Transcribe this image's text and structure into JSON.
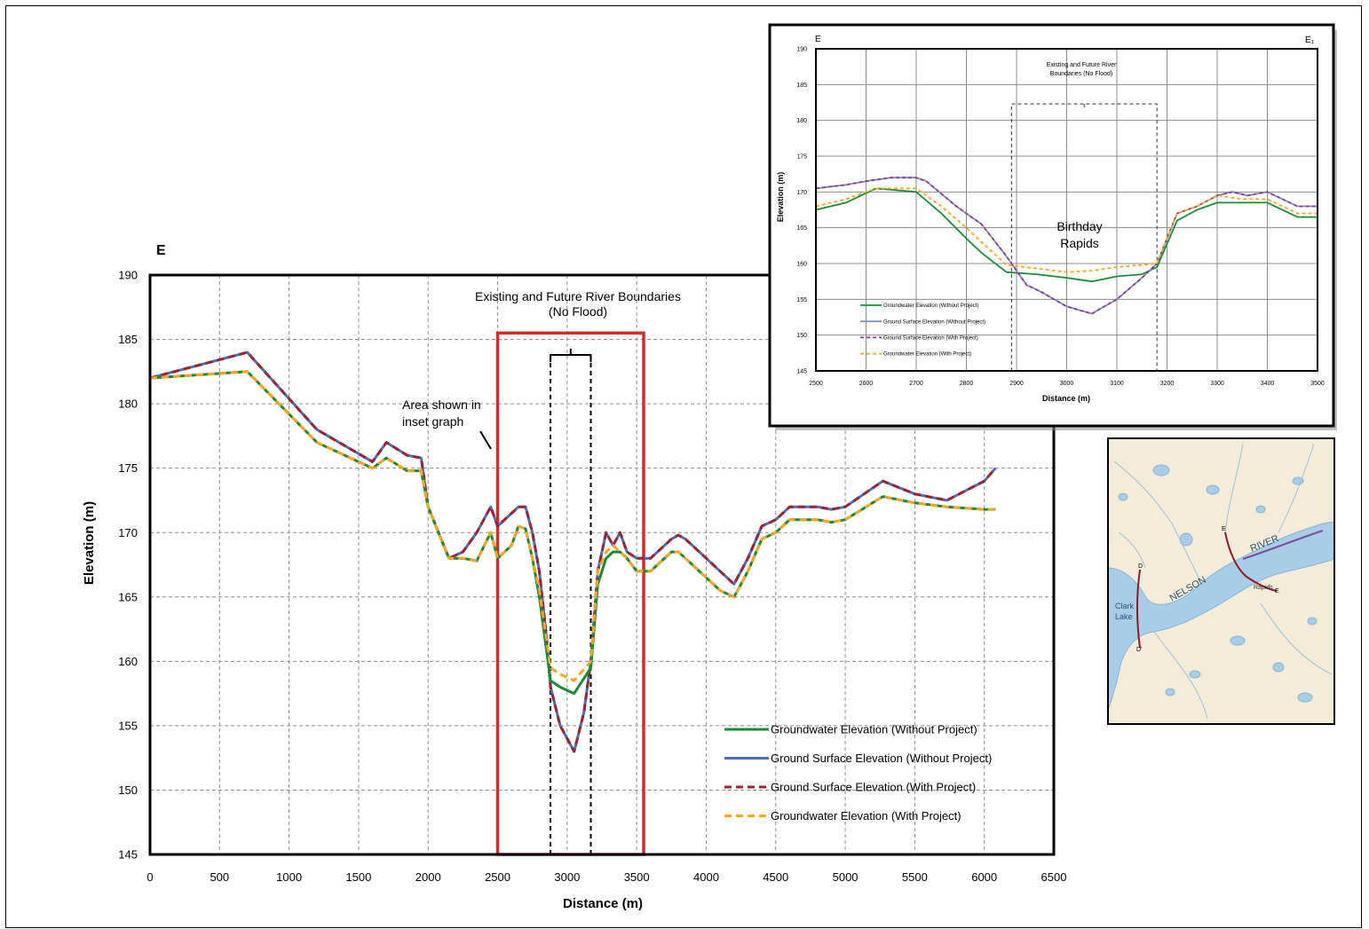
{
  "chart_data": [
    {
      "type": "line",
      "corner_label": "E",
      "xlabel": "Distance  (m)",
      "ylabel": "Elevation (m)",
      "xlim": [
        0,
        6500
      ],
      "ylim": [
        145,
        190
      ],
      "xticks": [
        0,
        500,
        1000,
        1500,
        2000,
        2500,
        3000,
        3500,
        4000,
        4500,
        5000,
        5500,
        6000,
        6500
      ],
      "yticks": [
        145,
        150,
        155,
        160,
        165,
        170,
        175,
        180,
        185,
        190
      ],
      "grid": true,
      "legend_position": "bottom-right",
      "annotations": {
        "boundaries_line1": "Existing and Future River Boundaries",
        "boundaries_line2": "(No Flood)",
        "inset_line1": "Area shown in",
        "inset_line2": "inset graph",
        "inset_area_x": [
          2500,
          3550
        ],
        "river_bounds_x": [
          2880,
          3170
        ]
      },
      "series": [
        {
          "name": "Ground Surface Elevation (Without Project)",
          "color": "#4a6fb5",
          "dash": "solid",
          "x": [
            0,
            700,
            1200,
            1600,
            1700,
            1850,
            1950,
            2000,
            2150,
            2250,
            2350,
            2450,
            2500,
            2600,
            2650,
            2700,
            2750,
            2800,
            2850,
            2880,
            2950,
            3050,
            3120,
            3170,
            3220,
            3280,
            3330,
            3380,
            3430,
            3500,
            3600,
            3650,
            3750,
            3800,
            3850,
            4000,
            4100,
            4200,
            4300,
            4400,
            4500,
            4600,
            4800,
            4900,
            5000,
            5270,
            5500,
            5730,
            6000,
            6080
          ],
          "y": [
            182,
            184,
            178,
            175.5,
            177,
            176,
            175.8,
            172,
            168,
            168.5,
            170,
            172,
            170.5,
            171.5,
            172,
            172,
            170,
            167,
            162,
            158,
            155,
            153,
            156,
            160,
            167,
            170,
            169,
            170,
            168.5,
            168,
            168,
            168.5,
            169.5,
            169.8,
            169.5,
            168,
            167,
            166,
            168,
            170.5,
            171,
            172,
            172,
            171.8,
            172,
            174,
            173,
            172.5,
            174,
            175
          ]
        },
        {
          "name": "Ground Surface Elevation (With Project)",
          "color": "#9b2335",
          "dash": "dashed",
          "x": [
            0,
            700,
            1200,
            1600,
            1700,
            1850,
            1950,
            2000,
            2150,
            2250,
            2350,
            2450,
            2500,
            2600,
            2650,
            2700,
            2750,
            2800,
            2850,
            2880,
            2950,
            3050,
            3120,
            3170,
            3220,
            3280,
            3330,
            3380,
            3430,
            3500,
            3600,
            3650,
            3750,
            3800,
            3850,
            4000,
            4100,
            4200,
            4300,
            4400,
            4500,
            4600,
            4800,
            4900,
            5000,
            5270,
            5500,
            5730,
            6000,
            6080
          ],
          "y": [
            182,
            184,
            178,
            175.5,
            177,
            176,
            175.8,
            172,
            168,
            168.5,
            170,
            172,
            170.5,
            171.5,
            172,
            172,
            170,
            167,
            162,
            158,
            155,
            153,
            156,
            160,
            167,
            170,
            169,
            170,
            168.5,
            168,
            168,
            168.5,
            169.5,
            169.8,
            169.5,
            168,
            167,
            166,
            168,
            170.5,
            171,
            172,
            172,
            171.8,
            172,
            174,
            173,
            172.5,
            174,
            175
          ]
        },
        {
          "name": "Groundwater Elevation (Without Project)",
          "color": "#1a8a3a",
          "dash": "solid",
          "x": [
            0,
            700,
            1200,
            1600,
            1700,
            1850,
            1950,
            2000,
            2150,
            2250,
            2350,
            2450,
            2500,
            2600,
            2650,
            2700,
            2750,
            2800,
            2880,
            2950,
            3050,
            3170,
            3220,
            3280,
            3330,
            3380,
            3430,
            3500,
            3600,
            3650,
            3750,
            3800,
            3850,
            4000,
            4100,
            4200,
            4300,
            4400,
            4500,
            4600,
            4800,
            4900,
            5000,
            5270,
            5500,
            5730,
            6000,
            6080
          ],
          "y": [
            182,
            182.5,
            177,
            175,
            175.8,
            174.8,
            174.8,
            172,
            168,
            168,
            167.8,
            170,
            168,
            169,
            170.5,
            170.3,
            168,
            165,
            158.5,
            158,
            157.5,
            159.5,
            166,
            168,
            168.5,
            168.5,
            168,
            167,
            167,
            167.5,
            168.5,
            168.5,
            168,
            166.5,
            165.5,
            165,
            167,
            169.5,
            170,
            171,
            171,
            170.8,
            171,
            172.8,
            172.3,
            172,
            171.8,
            171.8
          ]
        },
        {
          "name": "Groundwater Elevation (With Project)",
          "color": "#f5a623",
          "dash": "dashed",
          "x": [
            0,
            700,
            1200,
            1600,
            1700,
            1850,
            1950,
            2000,
            2150,
            2250,
            2350,
            2450,
            2500,
            2600,
            2650,
            2700,
            2750,
            2800,
            2880,
            2950,
            3050,
            3170,
            3220,
            3280,
            3330,
            3380,
            3430,
            3500,
            3600,
            3650,
            3750,
            3800,
            3850,
            4000,
            4100,
            4200,
            4300,
            4400,
            4500,
            4600,
            4800,
            4900,
            5000,
            5270,
            5500,
            5730,
            6000,
            6080
          ],
          "y": [
            182,
            182.5,
            177,
            175,
            175.8,
            174.8,
            174.8,
            172,
            168,
            168,
            167.8,
            170,
            168,
            169,
            170.5,
            170.3,
            168,
            165.5,
            159.5,
            159,
            158.5,
            160,
            167,
            168.5,
            169,
            168.5,
            168,
            167,
            167,
            167.5,
            168.5,
            168.5,
            168,
            166.5,
            165.5,
            165,
            167,
            169.5,
            170,
            171,
            171,
            170.8,
            171,
            172.8,
            172.3,
            172,
            171.8,
            171.8
          ]
        }
      ]
    },
    {
      "type": "line",
      "corner_label_left": "E",
      "corner_label_right": "E₁",
      "xlabel": "Distance  (m)",
      "ylabel": "Elevation (m)",
      "xlim": [
        2500,
        3500
      ],
      "ylim": [
        145,
        190
      ],
      "xticks": [
        2500,
        2600,
        2700,
        2800,
        2900,
        3000,
        3100,
        3200,
        3300,
        3400,
        3500
      ],
      "yticks": [
        145,
        150,
        155,
        160,
        165,
        170,
        175,
        180,
        185,
        190
      ],
      "grid": true,
      "legend_position": "bottom-left",
      "annotations": {
        "boundaries_line1": "Existing and Future River",
        "boundaries_line2": "Boundaries (No Flood)",
        "rapids_line1": "Birthday",
        "rapids_line2": "Rapids",
        "river_bounds_x": [
          2890,
          3180
        ]
      },
      "series": [
        {
          "name": "Groundwater Elevation (Without Project)",
          "color": "#1a8a3a",
          "dash": "solid",
          "x": [
            2500,
            2560,
            2620,
            2700,
            2750,
            2800,
            2830,
            2880,
            2940,
            3000,
            3050,
            3100,
            3150,
            3180,
            3220,
            3260,
            3300,
            3350,
            3400,
            3460,
            3500
          ],
          "y": [
            167.5,
            168.5,
            170.5,
            170,
            167,
            163.5,
            161.5,
            158.8,
            158.5,
            158,
            157.5,
            158.2,
            158.5,
            159.5,
            166,
            167.5,
            168.5,
            168.5,
            168.5,
            166.5,
            166.5
          ]
        },
        {
          "name": "Ground Surface Elevation (Without Project)",
          "color": "#7d8fc4",
          "dash": "solid",
          "x": [
            2500,
            2560,
            2600,
            2650,
            2700,
            2720,
            2780,
            2830,
            2880,
            2920,
            2950,
            3000,
            3050,
            3100,
            3150,
            3180,
            3220,
            3260,
            3300,
            3330,
            3360,
            3400,
            3460,
            3500
          ],
          "y": [
            170.5,
            171,
            171.5,
            172,
            172,
            171.5,
            168,
            165.5,
            161,
            157,
            156,
            154,
            153,
            155,
            158,
            160,
            167,
            168,
            169.5,
            170,
            169.5,
            170,
            168,
            168
          ]
        },
        {
          "name": "Ground Surface Elevation (With Project)",
          "color": "#8e3a8e",
          "dash": "dashed",
          "x": [
            2500,
            2560,
            2600,
            2650,
            2700,
            2720,
            2780,
            2830,
            2880,
            2920,
            2950,
            3000,
            3050,
            3100,
            3150,
            3180,
            3220,
            3260,
            3300,
            3330,
            3360,
            3400,
            3460,
            3500
          ],
          "y": [
            170.5,
            171,
            171.5,
            172,
            172,
            171.5,
            168,
            165.5,
            161,
            157,
            156,
            154,
            153,
            155,
            158,
            160,
            167,
            168,
            169.5,
            170,
            169.5,
            170,
            168,
            168
          ]
        },
        {
          "name": "Groundwater Elevation (With Project)",
          "color": "#f5a623",
          "dash": "dashed",
          "x": [
            2500,
            2560,
            2620,
            2700,
            2750,
            2800,
            2830,
            2880,
            2940,
            3000,
            3050,
            3100,
            3150,
            3180,
            3220,
            3260,
            3300,
            3350,
            3400,
            3460,
            3500
          ],
          "y": [
            168,
            169,
            170.5,
            170.5,
            168,
            165,
            163,
            159.8,
            159.3,
            158.8,
            159,
            159.5,
            159.8,
            160,
            167,
            168,
            169.5,
            169,
            169,
            167,
            167
          ]
        }
      ]
    }
  ],
  "map": {
    "labels": {
      "river": "RIVER",
      "nelson": "NELSON",
      "lake_line1": "Clark",
      "lake_line2": "Lake",
      "point_d": "D",
      "point_d1": "D'",
      "point_e": "E",
      "point_e1": "E",
      "rapids": "Rapids"
    },
    "colors": {
      "land": "#f4ecd8",
      "water": "#a9cde6",
      "section": "#8b1a2b"
    }
  }
}
